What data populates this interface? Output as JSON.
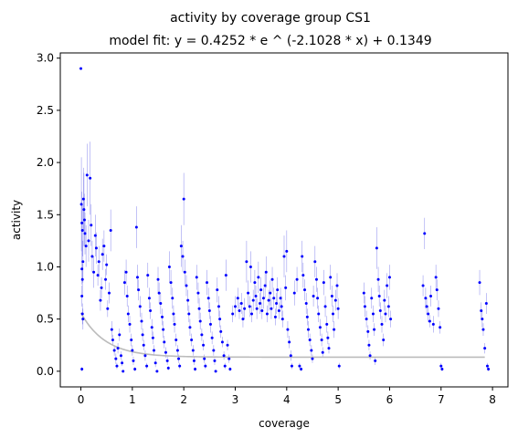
{
  "chart_data": {
    "type": "scatter",
    "title": "activity by coverage group CS1",
    "subtitle": "model fit: y = 0.4252 * e ^ (-2.1028 * x) + 0.1349",
    "xlabel": "coverage",
    "ylabel": "activity",
    "xlim": [
      -0.4,
      8.3
    ],
    "ylim": [
      -0.15,
      3.05
    ],
    "x_ticks": [
      0,
      1,
      2,
      3,
      4,
      5,
      6,
      7,
      8
    ],
    "y_ticks": [
      0.0,
      0.5,
      1.0,
      1.5,
      2.0,
      2.5,
      3.0
    ],
    "x_tick_labels": [
      "0",
      "1",
      "2",
      "3",
      "4",
      "5",
      "6",
      "7",
      "8"
    ],
    "y_tick_labels": [
      "0.0",
      "0.5",
      "1.0",
      "1.5",
      "2.0",
      "2.5",
      "3.0"
    ],
    "grid": false,
    "legend": "none",
    "point_color": "#0000ff",
    "errorbar_color": "#9a9af0",
    "fit_color": "#bbbbbb",
    "fit": {
      "a": 0.4252,
      "b": -2.1028,
      "c": 0.1349,
      "x_range": [
        0,
        7.85
      ]
    },
    "points": [
      [
        0.0,
        2.9,
        0
      ],
      [
        0.01,
        1.6,
        0.45
      ],
      [
        0.02,
        1.42,
        0.3
      ],
      [
        0.03,
        1.35,
        0.25
      ],
      [
        0.04,
        1.05,
        0.2
      ],
      [
        0.02,
        0.98,
        0.15
      ],
      [
        0.03,
        0.88,
        0.15
      ],
      [
        0.02,
        0.72,
        0.1
      ],
      [
        0.03,
        0.55,
        0.1
      ],
      [
        0.04,
        0.5,
        0.1
      ],
      [
        0.02,
        0.02,
        0.02
      ],
      [
        0.05,
        1.65,
        0.3
      ],
      [
        0.06,
        1.55,
        0.35
      ],
      [
        0.07,
        1.45,
        0.25
      ],
      [
        0.08,
        1.32,
        0.2
      ],
      [
        0.1,
        1.2,
        0.2
      ],
      [
        0.12,
        1.88,
        0.3
      ],
      [
        0.15,
        1.25,
        0.2
      ],
      [
        0.18,
        1.85,
        0.35
      ],
      [
        0.2,
        1.4,
        0.2
      ],
      [
        0.22,
        1.1,
        0.15
      ],
      [
        0.25,
        0.95,
        0.15
      ],
      [
        0.28,
        1.3,
        0.2
      ],
      [
        0.3,
        1.18,
        0.15
      ],
      [
        0.33,
        0.92,
        0.1
      ],
      [
        0.35,
        1.05,
        0.15
      ],
      [
        0.38,
        0.68,
        0.1
      ],
      [
        0.4,
        0.8,
        0.1
      ],
      [
        0.42,
        1.12,
        0.15
      ],
      [
        0.45,
        1.2,
        0.15
      ],
      [
        0.48,
        0.88,
        0.1
      ],
      [
        0.5,
        1.02,
        0.1
      ],
      [
        0.52,
        0.6,
        0.08
      ],
      [
        0.55,
        0.75,
        0.1
      ],
      [
        0.58,
        1.35,
        0.2
      ],
      [
        0.6,
        0.4,
        0.08
      ],
      [
        0.62,
        0.3,
        0.05
      ],
      [
        0.65,
        0.2,
        0.05
      ],
      [
        0.68,
        0.12,
        0.05
      ],
      [
        0.7,
        0.05,
        0.03
      ],
      [
        0.72,
        0.22,
        0.05
      ],
      [
        0.75,
        0.35,
        0.06
      ],
      [
        0.78,
        0.15,
        0.04
      ],
      [
        0.8,
        0.08,
        0.03
      ],
      [
        0.82,
        0.0,
        0.01
      ],
      [
        0.85,
        0.85,
        0.12
      ],
      [
        0.88,
        0.95,
        0.12
      ],
      [
        0.9,
        0.72,
        0.1
      ],
      [
        0.92,
        0.55,
        0.08
      ],
      [
        0.95,
        0.45,
        0.08
      ],
      [
        0.98,
        0.3,
        0.06
      ],
      [
        1.0,
        0.2,
        0.05
      ],
      [
        1.02,
        0.1,
        0.04
      ],
      [
        1.05,
        0.02,
        0.02
      ],
      [
        1.08,
        1.38,
        0.2
      ],
      [
        1.1,
        0.9,
        0.12
      ],
      [
        1.12,
        0.78,
        0.1
      ],
      [
        1.15,
        0.62,
        0.1
      ],
      [
        1.18,
        0.48,
        0.08
      ],
      [
        1.2,
        0.35,
        0.06
      ],
      [
        1.22,
        0.25,
        0.05
      ],
      [
        1.25,
        0.15,
        0.05
      ],
      [
        1.28,
        0.05,
        0.03
      ],
      [
        1.3,
        0.92,
        0.12
      ],
      [
        1.33,
        0.7,
        0.1
      ],
      [
        1.35,
        0.58,
        0.08
      ],
      [
        1.38,
        0.42,
        0.08
      ],
      [
        1.4,
        0.32,
        0.06
      ],
      [
        1.42,
        0.2,
        0.05
      ],
      [
        1.45,
        0.08,
        0.04
      ],
      [
        1.48,
        0.0,
        0.01
      ],
      [
        1.5,
        0.88,
        0.12
      ],
      [
        1.52,
        0.75,
        0.1
      ],
      [
        1.55,
        0.65,
        0.1
      ],
      [
        1.58,
        0.52,
        0.08
      ],
      [
        1.6,
        0.4,
        0.08
      ],
      [
        1.62,
        0.28,
        0.06
      ],
      [
        1.65,
        0.18,
        0.05
      ],
      [
        1.68,
        0.1,
        0.04
      ],
      [
        1.7,
        0.03,
        0.02
      ],
      [
        1.72,
        1.0,
        0.15
      ],
      [
        1.75,
        0.85,
        0.12
      ],
      [
        1.78,
        0.7,
        0.1
      ],
      [
        1.8,
        0.55,
        0.08
      ],
      [
        1.82,
        0.45,
        0.08
      ],
      [
        1.85,
        0.3,
        0.06
      ],
      [
        1.88,
        0.2,
        0.05
      ],
      [
        1.9,
        0.12,
        0.04
      ],
      [
        1.92,
        0.05,
        0.03
      ],
      [
        1.95,
        1.2,
        0.2
      ],
      [
        1.98,
        1.1,
        0.15
      ],
      [
        2.0,
        1.65,
        0.25
      ],
      [
        2.02,
        0.95,
        0.12
      ],
      [
        2.05,
        0.82,
        0.1
      ],
      [
        2.08,
        0.68,
        0.1
      ],
      [
        2.1,
        0.55,
        0.08
      ],
      [
        2.12,
        0.42,
        0.08
      ],
      [
        2.15,
        0.3,
        0.06
      ],
      [
        2.18,
        0.2,
        0.05
      ],
      [
        2.2,
        0.1,
        0.04
      ],
      [
        2.22,
        0.02,
        0.02
      ],
      [
        2.25,
        0.9,
        0.12
      ],
      [
        2.28,
        0.75,
        0.1
      ],
      [
        2.3,
        0.6,
        0.1
      ],
      [
        2.32,
        0.48,
        0.08
      ],
      [
        2.35,
        0.35,
        0.06
      ],
      [
        2.38,
        0.25,
        0.05
      ],
      [
        2.4,
        0.12,
        0.04
      ],
      [
        2.42,
        0.05,
        0.03
      ],
      [
        2.45,
        0.85,
        0.12
      ],
      [
        2.48,
        0.7,
        0.1
      ],
      [
        2.5,
        0.58,
        0.08
      ],
      [
        2.52,
        0.45,
        0.08
      ],
      [
        2.55,
        0.32,
        0.06
      ],
      [
        2.58,
        0.2,
        0.05
      ],
      [
        2.6,
        0.1,
        0.04
      ],
      [
        2.62,
        0.0,
        0.01
      ],
      [
        2.65,
        0.78,
        0.12
      ],
      [
        2.68,
        0.62,
        0.1
      ],
      [
        2.7,
        0.5,
        0.08
      ],
      [
        2.72,
        0.38,
        0.06
      ],
      [
        2.75,
        0.28,
        0.05
      ],
      [
        2.78,
        0.15,
        0.04
      ],
      [
        2.8,
        0.05,
        0.03
      ],
      [
        2.82,
        0.92,
        0.15
      ],
      [
        2.85,
        0.25,
        0.05
      ],
      [
        2.88,
        0.12,
        0.04
      ],
      [
        2.9,
        0.02,
        0.02
      ],
      [
        2.95,
        0.55,
        0.08
      ],
      [
        3.0,
        0.62,
        0.1
      ],
      [
        3.05,
        0.7,
        0.1
      ],
      [
        3.08,
        0.58,
        0.08
      ],
      [
        3.12,
        0.65,
        0.1
      ],
      [
        3.15,
        0.5,
        0.08
      ],
      [
        3.18,
        0.6,
        0.1
      ],
      [
        3.22,
        1.05,
        0.2
      ],
      [
        3.25,
        0.75,
        0.12
      ],
      [
        3.28,
        0.62,
        0.1
      ],
      [
        3.3,
        1.0,
        0.15
      ],
      [
        3.32,
        0.55,
        0.08
      ],
      [
        3.35,
        0.68,
        0.1
      ],
      [
        3.38,
        0.85,
        0.12
      ],
      [
        3.4,
        0.72,
        0.1
      ],
      [
        3.42,
        0.6,
        0.1
      ],
      [
        3.45,
        0.9,
        0.15
      ],
      [
        3.48,
        0.65,
        0.1
      ],
      [
        3.5,
        0.78,
        0.12
      ],
      [
        3.52,
        0.58,
        0.08
      ],
      [
        3.55,
        0.7,
        0.1
      ],
      [
        3.58,
        0.82,
        0.12
      ],
      [
        3.6,
        0.95,
        0.15
      ],
      [
        3.62,
        0.55,
        0.08
      ],
      [
        3.65,
        0.68,
        0.1
      ],
      [
        3.68,
        0.75,
        0.12
      ],
      [
        3.7,
        0.6,
        0.1
      ],
      [
        3.72,
        0.88,
        0.12
      ],
      [
        3.75,
        0.7,
        0.1
      ],
      [
        3.78,
        0.52,
        0.08
      ],
      [
        3.8,
        0.65,
        0.1
      ],
      [
        3.82,
        0.78,
        0.12
      ],
      [
        3.85,
        0.58,
        0.08
      ],
      [
        3.88,
        0.7,
        0.1
      ],
      [
        3.9,
        0.62,
        0.1
      ],
      [
        3.92,
        0.5,
        0.08
      ],
      [
        3.95,
        1.1,
        0.2
      ],
      [
        3.98,
        0.8,
        0.12
      ],
      [
        4.0,
        1.15,
        0.2
      ],
      [
        4.02,
        0.4,
        0.08
      ],
      [
        4.05,
        0.28,
        0.06
      ],
      [
        4.08,
        0.15,
        0.05
      ],
      [
        4.1,
        0.05,
        0.03
      ],
      [
        4.15,
        0.75,
        0.12
      ],
      [
        4.2,
        0.88,
        0.12
      ],
      [
        4.25,
        0.05,
        0.03
      ],
      [
        4.28,
        0.02,
        0.02
      ],
      [
        4.3,
        1.1,
        0.15
      ],
      [
        4.32,
        0.92,
        0.12
      ],
      [
        4.35,
        0.78,
        0.1
      ],
      [
        4.38,
        0.65,
        0.1
      ],
      [
        4.4,
        0.52,
        0.08
      ],
      [
        4.42,
        0.4,
        0.08
      ],
      [
        4.45,
        0.3,
        0.06
      ],
      [
        4.48,
        0.2,
        0.05
      ],
      [
        4.5,
        0.12,
        0.04
      ],
      [
        4.52,
        0.72,
        0.1
      ],
      [
        4.55,
        1.05,
        0.15
      ],
      [
        4.58,
        0.88,
        0.12
      ],
      [
        4.6,
        0.7,
        0.1
      ],
      [
        4.62,
        0.55,
        0.08
      ],
      [
        4.65,
        0.42,
        0.08
      ],
      [
        4.68,
        0.3,
        0.06
      ],
      [
        4.7,
        0.18,
        0.05
      ],
      [
        4.72,
        0.85,
        0.12
      ],
      [
        4.75,
        0.62,
        0.1
      ],
      [
        4.78,
        0.45,
        0.08
      ],
      [
        4.8,
        0.32,
        0.06
      ],
      [
        4.82,
        0.22,
        0.05
      ],
      [
        4.85,
        0.9,
        0.12
      ],
      [
        4.88,
        0.72,
        0.1
      ],
      [
        4.9,
        0.55,
        0.08
      ],
      [
        4.92,
        0.4,
        0.08
      ],
      [
        4.95,
        0.68,
        0.1
      ],
      [
        4.98,
        0.82,
        0.12
      ],
      [
        5.0,
        0.6,
        0.1
      ],
      [
        5.02,
        0.05,
        0.03
      ],
      [
        5.5,
        0.75,
        0.1
      ],
      [
        5.52,
        0.62,
        0.1
      ],
      [
        5.55,
        0.5,
        0.08
      ],
      [
        5.58,
        0.38,
        0.06
      ],
      [
        5.6,
        0.25,
        0.05
      ],
      [
        5.62,
        0.15,
        0.04
      ],
      [
        5.65,
        0.7,
        0.1
      ],
      [
        5.68,
        0.55,
        0.08
      ],
      [
        5.7,
        0.4,
        0.06
      ],
      [
        5.72,
        0.1,
        0.04
      ],
      [
        5.75,
        1.18,
        0.2
      ],
      [
        5.78,
        0.88,
        0.12
      ],
      [
        5.8,
        0.72,
        0.1
      ],
      [
        5.82,
        0.58,
        0.08
      ],
      [
        5.85,
        0.45,
        0.08
      ],
      [
        5.88,
        0.3,
        0.06
      ],
      [
        5.9,
        0.68,
        0.1
      ],
      [
        5.92,
        0.55,
        0.08
      ],
      [
        5.95,
        0.82,
        0.12
      ],
      [
        5.98,
        0.62,
        0.1
      ],
      [
        6.0,
        0.9,
        0.12
      ],
      [
        6.02,
        0.5,
        0.08
      ],
      [
        6.65,
        0.82,
        0.1
      ],
      [
        6.68,
        1.32,
        0.15
      ],
      [
        6.7,
        0.7,
        0.1
      ],
      [
        6.72,
        0.62,
        0.08
      ],
      [
        6.75,
        0.55,
        0.08
      ],
      [
        6.78,
        0.48,
        0.06
      ],
      [
        6.8,
        0.72,
        0.1
      ],
      [
        6.85,
        0.45,
        0.08
      ],
      [
        6.9,
        0.9,
        0.12
      ],
      [
        6.92,
        0.78,
        0.1
      ],
      [
        6.95,
        0.6,
        0.08
      ],
      [
        6.98,
        0.42,
        0.06
      ],
      [
        7.0,
        0.05,
        0.03
      ],
      [
        7.02,
        0.02,
        0.02
      ],
      [
        7.75,
        0.85,
        0.12
      ],
      [
        7.78,
        0.58,
        0.08
      ],
      [
        7.8,
        0.5,
        0.08
      ],
      [
        7.82,
        0.4,
        0.06
      ],
      [
        7.85,
        0.22,
        0.05
      ],
      [
        7.88,
        0.65,
        0.1
      ],
      [
        7.9,
        0.05,
        0.03
      ],
      [
        7.92,
        0.02,
        0.02
      ]
    ]
  }
}
